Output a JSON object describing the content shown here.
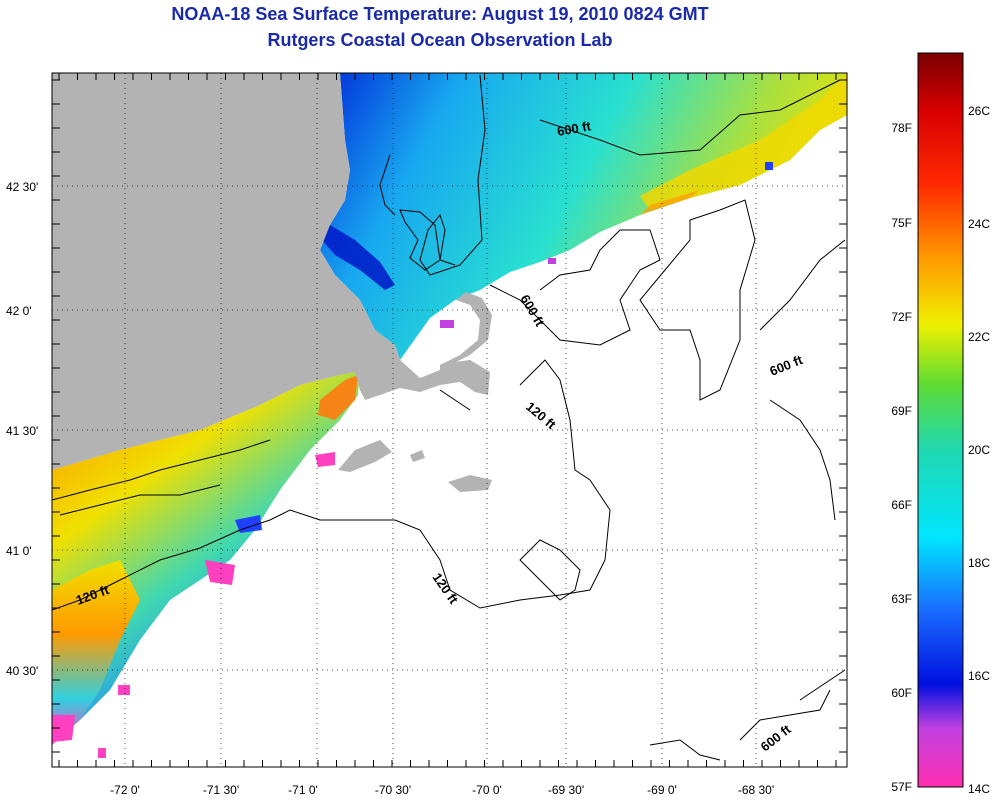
{
  "title": "NOAA-18 Sea Surface Temperature:  August 19, 2010 0824 GMT",
  "subtitle": "Rutgers Coastal Ocean Observation Lab",
  "x_ticks": [
    "-72 0'",
    "-71 30'",
    "-71 0'",
    "-70 30'",
    "-70 0'",
    "-69 30'",
    "-69 0'",
    "-68 30'"
  ],
  "y_ticks": [
    "42 30'",
    "42 0'",
    "41 30'",
    "41 0'",
    "40 30'"
  ],
  "contour_labels": [
    "600 ft",
    "600 ft",
    "600 ft",
    "600 ft",
    "120 ft",
    "120 ft",
    "120 ft"
  ],
  "colorbar": {
    "fahrenheit": [
      "78F",
      "75F",
      "72F",
      "69F",
      "66F",
      "63F",
      "60F",
      "57F"
    ],
    "celsius": [
      "26C",
      "24C",
      "22C",
      "20C",
      "18C",
      "16C",
      "14C"
    ]
  },
  "colors": {
    "land": "#b3b3b3",
    "title": "#1a2aa8",
    "no_data": "#ffffff"
  }
}
